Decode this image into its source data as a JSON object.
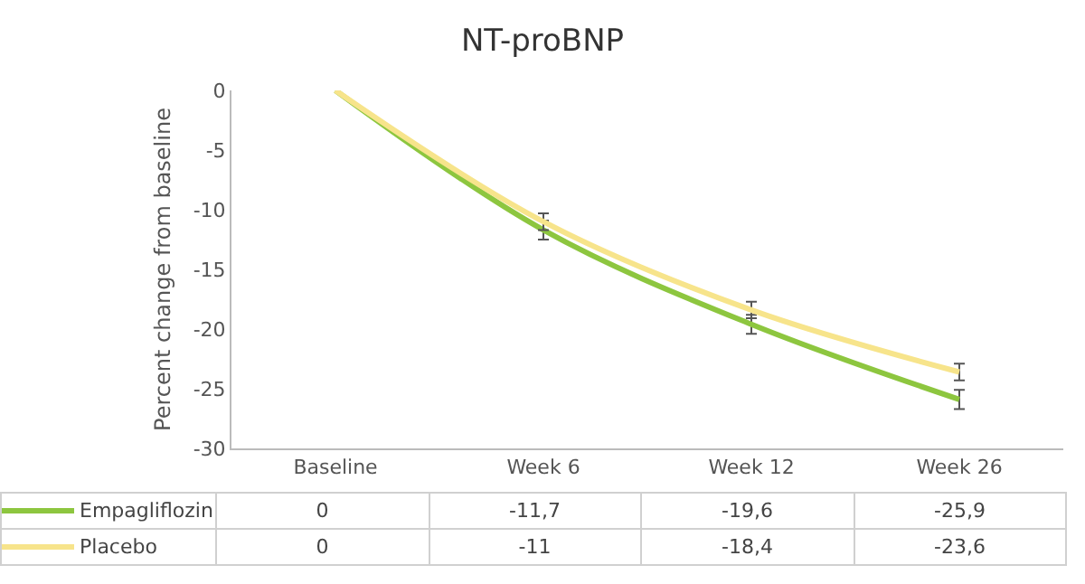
{
  "chart_data": {
    "type": "line",
    "title": "NT-proBNP",
    "ylabel": "Percent change from baseline",
    "categories": [
      "Baseline",
      "Week 6",
      "Week 12",
      "Week 26"
    ],
    "series": [
      {
        "name": "Empagliflozin",
        "color": "#8dc63f",
        "values": [
          0,
          -11.7,
          -19.6,
          -25.9
        ],
        "errors": [
          null,
          0.8,
          0.8,
          0.8
        ],
        "value_labels": [
          "0",
          "-11,7",
          "-19,6",
          "-25,9"
        ]
      },
      {
        "name": "Placebo",
        "color": "#f7e48b",
        "values": [
          0,
          -11,
          -18.4,
          -23.6
        ],
        "errors": [
          null,
          0.7,
          0.7,
          0.7
        ],
        "value_labels": [
          "0",
          "-11",
          "-18,4",
          "-23,6"
        ]
      }
    ],
    "ylim": [
      -30,
      0
    ],
    "yticks": [
      0,
      -5,
      -10,
      -15,
      -20,
      -25,
      -30
    ],
    "grid": false,
    "legend": "bottom left",
    "line_style": "solid",
    "data_labels": true
  }
}
